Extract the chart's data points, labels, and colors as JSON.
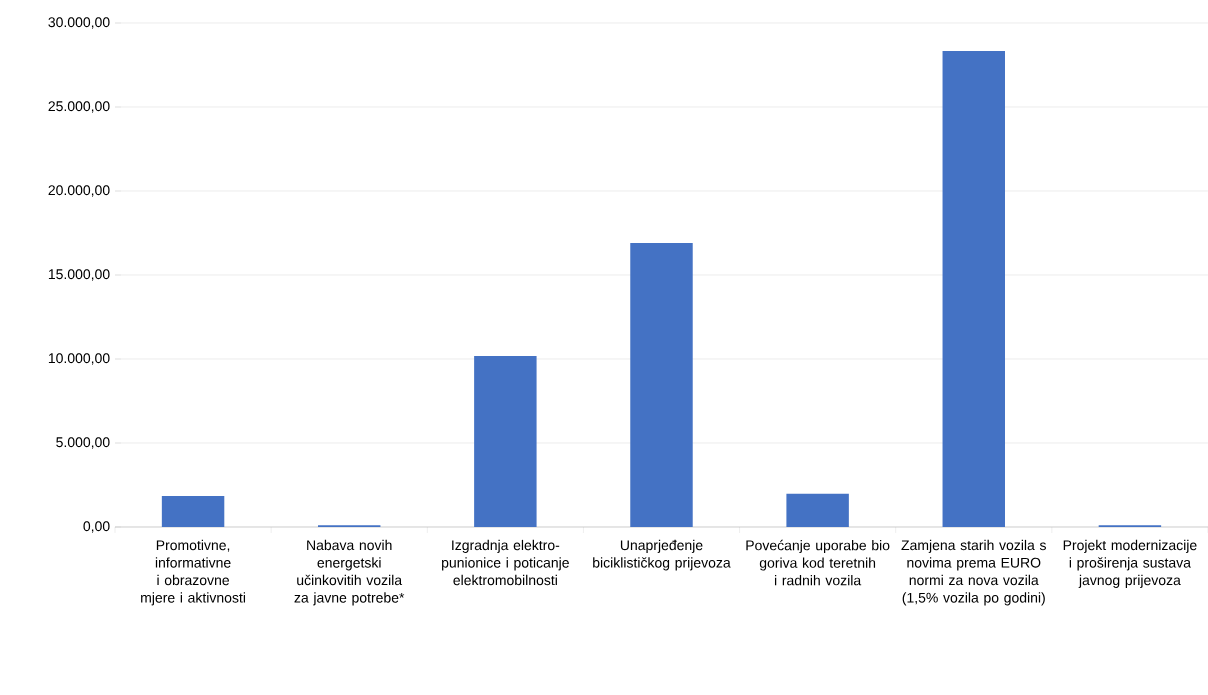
{
  "chart_data": {
    "type": "bar",
    "categories": [
      "Promotivne, informativne i obrazovne mjere i aktivnosti",
      "Nabava novih energetski učinkovitih vozila za javne potrebe*",
      "Izgradnja elektro-punionice i poticanje elektromobilnosti",
      "Unaprjeđenje biciklističkog prijevoza",
      "Povećanje uporabe bio goriva kod teretnih i radnih vozila",
      "Zamjena starih vozila s novima prema EURO normi za nova vozila (1,5% vozila po godini)",
      "Projekt modernizacije i proširenja sustava javnog prijevoza"
    ],
    "values": [
      1850,
      100,
      10180,
      16900,
      1980,
      28330,
      100
    ],
    "color": "#4472c4",
    "ylim": [
      0,
      30000
    ],
    "yticks": [
      {
        "value": 0,
        "label": "0,00"
      },
      {
        "value": 5000,
        "label": "5.000,00"
      },
      {
        "value": 10000,
        "label": "10.000,00"
      },
      {
        "value": 15000,
        "label": "15.000,00"
      },
      {
        "value": 20000,
        "label": "20.000,00"
      },
      {
        "value": 25000,
        "label": "25.000,00"
      },
      {
        "value": 30000,
        "label": "30.000,00"
      }
    ],
    "grid": "y"
  }
}
